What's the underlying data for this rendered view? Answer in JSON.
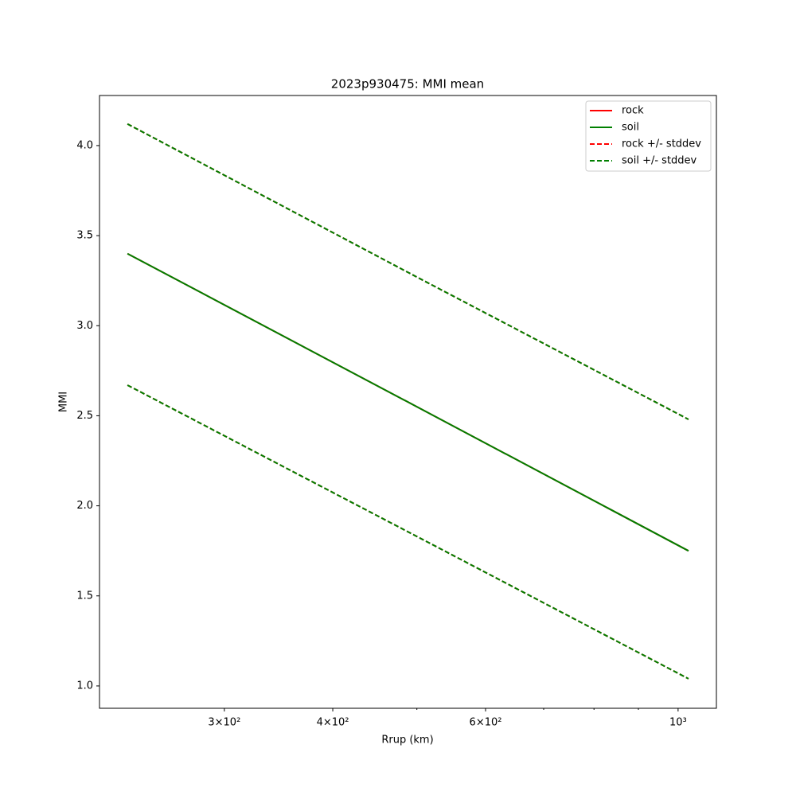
{
  "chart_data": {
    "type": "line",
    "title": "2023p930475: MMI mean",
    "x_label": "Rrup (km)",
    "y_label": "MMI",
    "x": [
      232,
      500,
      1028
    ],
    "series": [
      {
        "name": "rock",
        "color": "#ff0000",
        "dash": false,
        "values": [
          3.4,
          2.55,
          1.75
        ]
      },
      {
        "name": "soil",
        "color": "#008000",
        "dash": false,
        "values": [
          3.4,
          2.55,
          1.75
        ]
      },
      {
        "name": "rock +/- stddev",
        "color": "#ff0000",
        "dash": true,
        "upper": [
          4.12,
          3.27,
          2.48
        ],
        "lower": [
          2.67,
          1.83,
          1.04
        ]
      },
      {
        "name": "soil +/- stddev",
        "color": "#008000",
        "dash": true,
        "upper": [
          4.12,
          3.27,
          2.48
        ],
        "lower": [
          2.67,
          1.83,
          1.04
        ]
      }
    ],
    "xscale": "log",
    "xlim": [
      215.4,
      1107
    ],
    "xticks": [
      {
        "value": 300,
        "label": "3×10²"
      },
      {
        "value": 400,
        "label": "4×10²"
      },
      {
        "value": 600,
        "label": "6×10²"
      },
      {
        "value": 1000,
        "label": "10³"
      }
    ],
    "xminor": [
      500,
      700,
      800,
      900
    ],
    "ylim": [
      0.876,
      4.278
    ],
    "yticks": [
      {
        "value": 1.0,
        "label": "1.0"
      },
      {
        "value": 1.5,
        "label": "1.5"
      },
      {
        "value": 2.0,
        "label": "2.0"
      },
      {
        "value": 2.5,
        "label": "2.5"
      },
      {
        "value": 3.0,
        "label": "3.0"
      },
      {
        "value": 3.5,
        "label": "3.5"
      },
      {
        "value": 4.0,
        "label": "4.0"
      }
    ],
    "grid": false,
    "legend": "upper right"
  }
}
